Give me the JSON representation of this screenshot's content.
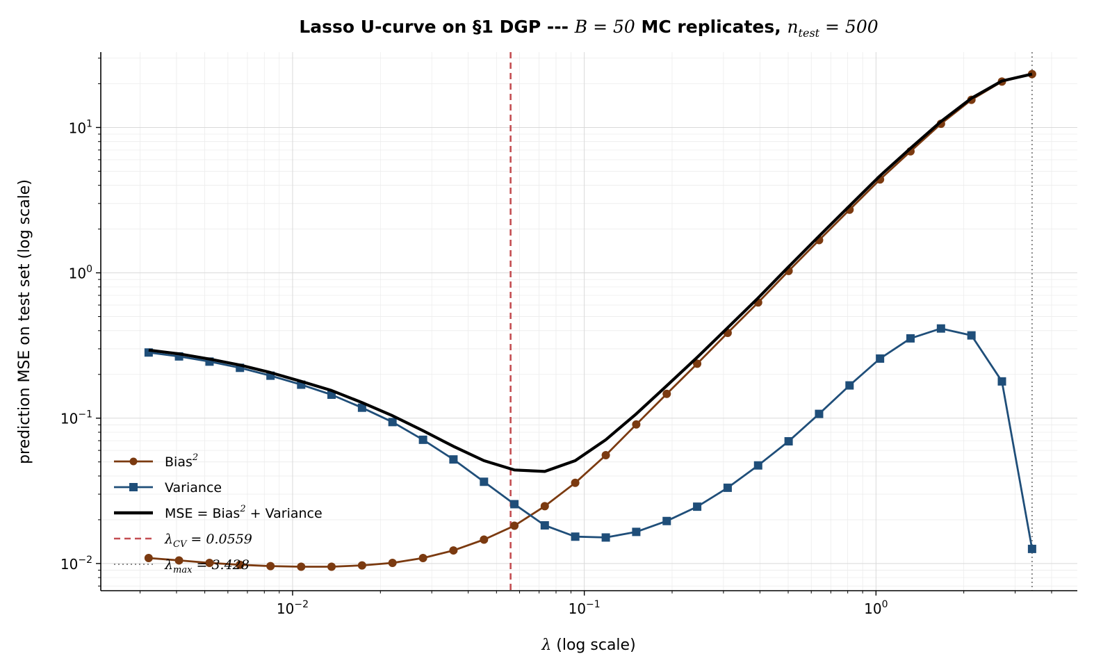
{
  "chart_data": {
    "type": "line",
    "title_parts": {
      "prefix": "Lasso U-curve on §1 DGP --- ",
      "b_expr": "B = 50",
      "middle": " MC replicates, ",
      "n_sym": "n",
      "n_sub": "test",
      "n_val": " = 500"
    },
    "xlabel_sym": "λ",
    "xlabel_rest": " (log scale)",
    "ylabel": "prediction MSE on test set (log scale)",
    "xscale": "log",
    "yscale": "log",
    "xlim": [
      0.0022,
      4.9
    ],
    "ylim": [
      0.0065,
      33
    ],
    "grid": true,
    "legend_location": "lower-left",
    "x_ticks": [
      {
        "value": 0.01,
        "base": "10",
        "exp": "−2"
      },
      {
        "value": 0.1,
        "base": "10",
        "exp": "−1"
      },
      {
        "value": 1,
        "base": "10",
        "exp": "0"
      }
    ],
    "y_ticks": [
      {
        "value": 0.01,
        "base": "10",
        "exp": "−2"
      },
      {
        "value": 0.1,
        "base": "10",
        "exp": "−1"
      },
      {
        "value": 1,
        "base": "10",
        "exp": "0"
      },
      {
        "value": 10,
        "base": "10",
        "exp": "1"
      }
    ],
    "x": [
      0.00321,
      0.00408,
      0.00519,
      0.0066,
      0.0084,
      0.0107,
      0.0136,
      0.0173,
      0.022,
      0.028,
      0.0356,
      0.0453,
      0.0576,
      0.0732,
      0.0931,
      0.1185,
      0.1507,
      0.1917,
      0.2438,
      0.3101,
      0.3944,
      0.5017,
      0.6381,
      0.8116,
      1.0324,
      1.3131,
      1.6702,
      2.1244,
      2.7021,
      3.428
    ],
    "series": [
      {
        "name": "Bias",
        "name_sup": "2",
        "color": "#7b3a10",
        "marker": "circle",
        "values": [
          0.0109,
          0.0105,
          0.0101,
          0.0098,
          0.0096,
          0.0095,
          0.0095,
          0.0097,
          0.0101,
          0.0109,
          0.0123,
          0.0146,
          0.0182,
          0.0248,
          0.0359,
          0.0556,
          0.0905,
          0.147,
          0.237,
          0.386,
          0.625,
          1.03,
          1.68,
          2.72,
          4.39,
          6.85,
          10.6,
          15.5,
          20.7,
          23.3
        ]
      },
      {
        "name": "Variance",
        "color": "#1f4e79",
        "marker": "square",
        "values": [
          0.283,
          0.266,
          0.245,
          0.222,
          0.196,
          0.17,
          0.145,
          0.118,
          0.094,
          0.071,
          0.052,
          0.0365,
          0.0256,
          0.0183,
          0.0153,
          0.0151,
          0.0165,
          0.0196,
          0.0246,
          0.0332,
          0.0473,
          0.0693,
          0.107,
          0.168,
          0.257,
          0.354,
          0.414,
          0.371,
          0.179,
          0.0126
        ]
      },
      {
        "name_parts": {
          "a": "MSE = Bias",
          "sup": "2",
          "b": " + Variance"
        },
        "color": "#000000",
        "marker": "none",
        "values": [
          0.294,
          0.277,
          0.255,
          0.232,
          0.206,
          0.179,
          0.155,
          0.128,
          0.104,
          0.082,
          0.064,
          0.051,
          0.044,
          0.043,
          0.051,
          0.071,
          0.107,
          0.167,
          0.262,
          0.419,
          0.672,
          1.1,
          1.79,
          2.89,
          4.65,
          7.2,
          11.0,
          15.9,
          20.9,
          23.3
        ]
      }
    ],
    "vlines": [
      {
        "x": 0.0559,
        "color": "#c44e52",
        "style": "dashed",
        "label_sym": "λ",
        "label_sub": "CV",
        "label_val": " = 0.0559"
      },
      {
        "x": 3.428,
        "color": "#888888",
        "style": "dotted",
        "label_sym": "λ",
        "label_sub": "max",
        "label_val": " = 3.428"
      }
    ]
  }
}
